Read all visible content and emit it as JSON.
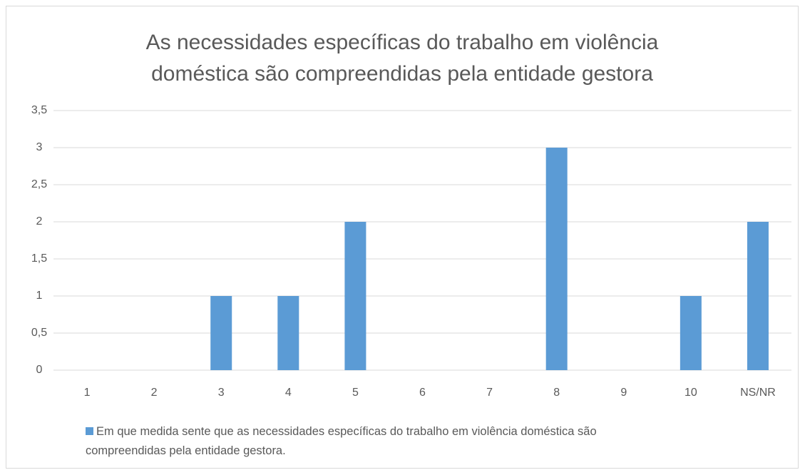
{
  "chart_data": {
    "type": "bar",
    "title": "As necessidades específicas do trabalho em violência doméstica são compreendidas pela entidade gestora",
    "categories": [
      "1",
      "2",
      "3",
      "4",
      "5",
      "6",
      "7",
      "8",
      "9",
      "10",
      "NS/NR"
    ],
    "series": [
      {
        "name": "Em que medida sente que as necessidades específicas do trabalho em violência doméstica são compreendidas pela entidade gestora.",
        "color": "#5b9bd5",
        "values": [
          0,
          0,
          1,
          1,
          2,
          0,
          0,
          3,
          0,
          1,
          2
        ]
      }
    ],
    "ylim": [
      0,
      3.5
    ],
    "yticks": [
      0,
      {
        "value": 0.5,
        "label": "0,5"
      },
      1,
      {
        "value": 1.5,
        "label": "1,5"
      },
      2,
      {
        "value": 2.5,
        "label": "2,5"
      },
      3,
      {
        "value": 3.5,
        "label": "3,5"
      }
    ],
    "grid": true,
    "legend": "bottom"
  }
}
